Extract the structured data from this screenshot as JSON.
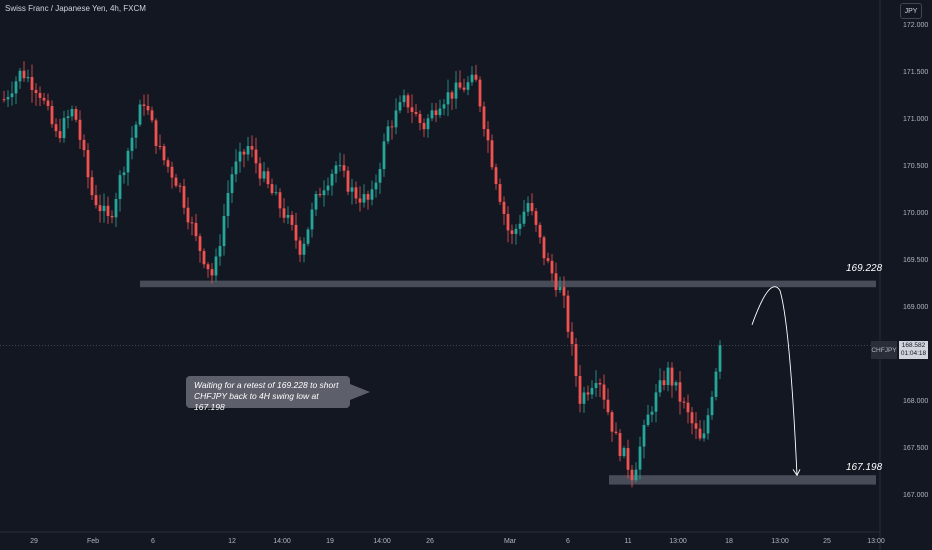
{
  "header": {
    "title": "Swiss Franc / Japanese Yen, 4h, FXCM",
    "currency_button": "JPY"
  },
  "annotation": {
    "note_line1": "Waiting for a retest of 169.228 to short",
    "note_line2": "CHFJPY back to 4H swing low at 167.198",
    "resistance_label": "169.228",
    "support_label": "167.198"
  },
  "price_tag": {
    "symbol": "CHFJPY",
    "price": "168.582",
    "countdown": "01:04:18"
  },
  "colors": {
    "background": "#131722",
    "up_candle": "#26a69a",
    "down_candle": "#ef5350",
    "zone": "#4e525e",
    "axis_text": "#b2b5be"
  },
  "chart_data": {
    "type": "candlestick",
    "symbol": "CHFJPY",
    "timeframe": "4h",
    "ylim": [
      166.9,
      172.15
    ],
    "y_ticks": [
      167.0,
      167.5,
      168.0,
      168.5,
      169.0,
      169.5,
      170.0,
      170.5,
      171.0,
      171.5,
      172.0
    ],
    "y_tick_labels": [
      "167.000",
      "167.500",
      "168.000",
      "168.500",
      "169.000",
      "169.500",
      "170.000",
      "170.500",
      "171.000",
      "171.500",
      "172.000"
    ],
    "x_tick_labels": [
      "29",
      "Feb",
      "6",
      "12",
      "14:00",
      "19",
      "14:00",
      "26",
      "Mar",
      "6",
      "11",
      "13:00",
      "18",
      "13:00",
      "25",
      "13:00"
    ],
    "last_price": 168.582,
    "resistance_zone": [
      169.2,
      169.27
    ],
    "support_zone": [
      167.1,
      167.2
    ],
    "close_path": [
      171.2,
      171.5,
      171.3,
      170.8,
      171.1,
      170.2,
      169.9,
      170.6,
      171.2,
      170.6,
      170.3,
      169.7,
      169.3,
      170.4,
      170.7,
      170.3,
      170.0,
      169.6,
      170.2,
      170.5,
      170.2,
      170.1,
      170.9,
      171.2,
      170.9,
      171.2,
      171.3,
      171.4,
      170.5,
      169.7,
      170.1,
      169.5,
      169.1,
      168.0,
      168.3,
      167.6,
      167.2,
      167.9,
      168.3,
      167.9,
      167.5,
      168.6
    ],
    "projection": {
      "from": 168.8,
      "peak": 169.228,
      "target": 167.198
    }
  }
}
